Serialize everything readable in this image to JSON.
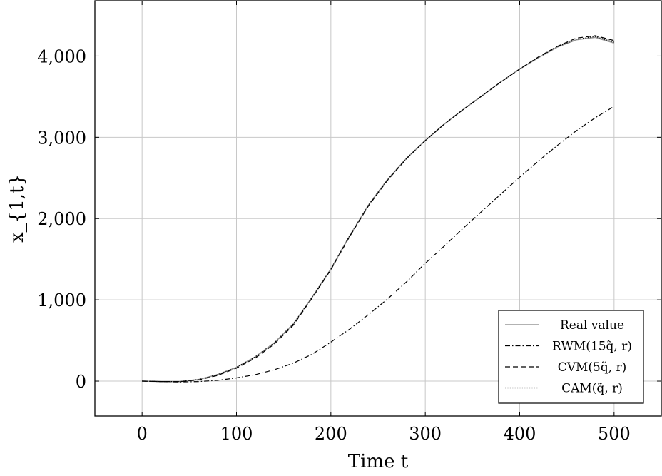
{
  "chart_data": {
    "type": "line",
    "xlabel": "Time t",
    "ylabel": "x_{1,t}",
    "xlim": [
      -50,
      550
    ],
    "ylim": [
      -430,
      4680
    ],
    "xticks": [
      0,
      100,
      200,
      300,
      400,
      500
    ],
    "yticks": [
      0,
      1000,
      2000,
      3000,
      4000
    ],
    "xtick_labels": [
      "0",
      "100",
      "200",
      "300",
      "400",
      "500"
    ],
    "ytick_labels": [
      "0",
      "1,000",
      "2,000",
      "3,000",
      "4,000"
    ],
    "grid": true,
    "legend_position": "bottom-right",
    "series": [
      {
        "name": "Real value",
        "color": "#999999",
        "style": "solid",
        "x": [
          0,
          20,
          40,
          60,
          80,
          100,
          120,
          140,
          160,
          180,
          200,
          220,
          240,
          260,
          280,
          300,
          320,
          340,
          360,
          380,
          400,
          420,
          440,
          460,
          480,
          500
        ],
        "y": [
          0,
          -5,
          -5,
          20,
          80,
          170,
          300,
          470,
          700,
          1030,
          1380,
          1790,
          2170,
          2480,
          2740,
          2960,
          3160,
          3340,
          3510,
          3680,
          3840,
          3980,
          4110,
          4200,
          4230,
          4160
        ]
      },
      {
        "name": "RWM(15q̃, r)",
        "color": "#000000",
        "style": "dashdot",
        "x": [
          0,
          20,
          40,
          60,
          80,
          100,
          120,
          140,
          160,
          180,
          200,
          220,
          240,
          260,
          280,
          300,
          320,
          340,
          360,
          380,
          400,
          420,
          440,
          460,
          480,
          500
        ],
        "y": [
          0,
          -5,
          -10,
          -5,
          10,
          40,
          80,
          140,
          220,
          330,
          480,
          640,
          820,
          1010,
          1220,
          1450,
          1660,
          1880,
          2090,
          2300,
          2510,
          2710,
          2900,
          3080,
          3240,
          3380
        ]
      },
      {
        "name": "CVM(5q̃, r)",
        "color": "#000000",
        "style": "dashed",
        "x": [
          0,
          20,
          40,
          60,
          80,
          100,
          120,
          140,
          160,
          180,
          200,
          220,
          240,
          260,
          280,
          300,
          320,
          340,
          360,
          380,
          400,
          420,
          440,
          460,
          480,
          500
        ],
        "y": [
          0,
          -5,
          -5,
          15,
          70,
          160,
          285,
          455,
          685,
          1020,
          1370,
          1780,
          2160,
          2470,
          2735,
          2960,
          3160,
          3340,
          3510,
          3680,
          3840,
          3990,
          4120,
          4220,
          4250,
          4190
        ]
      },
      {
        "name": "CAM(q̃, r)",
        "color": "#000000",
        "style": "dotted",
        "x": [
          0,
          20,
          40,
          60,
          80,
          100,
          120,
          140,
          160,
          180,
          200,
          220,
          240,
          260,
          280,
          300,
          320,
          340,
          360,
          380,
          400,
          420,
          440,
          460,
          480,
          500
        ],
        "y": [
          0,
          -5,
          -5,
          20,
          80,
          170,
          300,
          470,
          700,
          1030,
          1380,
          1790,
          2170,
          2480,
          2740,
          2960,
          3160,
          3340,
          3510,
          3680,
          3840,
          3985,
          4115,
          4205,
          4240,
          4170
        ]
      }
    ]
  }
}
